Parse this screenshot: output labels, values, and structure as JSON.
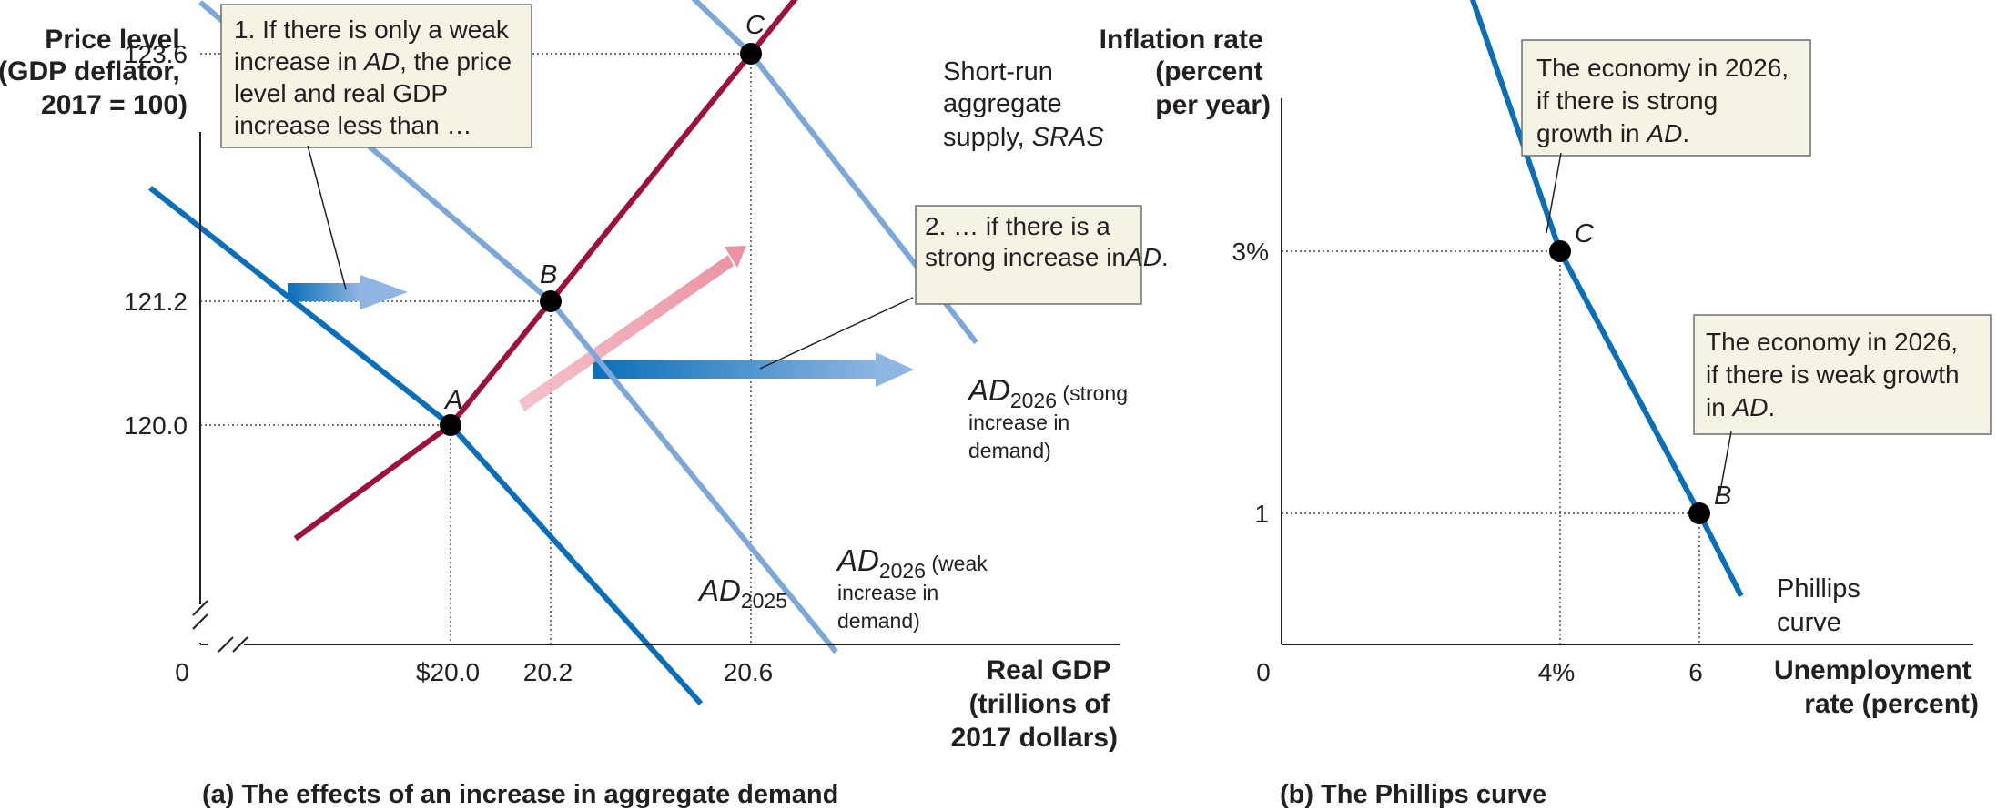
{
  "chart_data": [
    {
      "type": "line",
      "panel": "a",
      "caption_letter": "(a)",
      "caption": "The effects of an increase in aggregate demand",
      "ylabel": [
        "Price level",
        "(GDP deflator,",
        "2017 = 100)"
      ],
      "xlabel": [
        "Real GDP",
        "(trillions of",
        "2017 dollars)"
      ],
      "origin_label": "0",
      "x_ticks": [
        {
          "value": 20.0,
          "label": "$20.0"
        },
        {
          "value": 20.2,
          "label": "20.2"
        },
        {
          "value": 20.6,
          "label": "20.6"
        }
      ],
      "y_ticks": [
        {
          "value": 120.0,
          "label": "120.0"
        },
        {
          "value": 121.2,
          "label": "121.2"
        },
        {
          "value": 123.6,
          "label": "123.6"
        }
      ],
      "axis_break": true,
      "series": [
        {
          "id": "sras",
          "name": "SRAS",
          "label_lines": [
            "Short-run",
            "aggregate",
            "supply, SRAS"
          ],
          "color": "#a0103c",
          "x": [
            19.69,
            20.0,
            20.2,
            20.6,
            21.0
          ],
          "y": [
            118.9,
            120.0,
            121.2,
            123.6,
            126.0
          ]
        },
        {
          "id": "ad2025",
          "name": "AD2025",
          "label_main": "AD",
          "label_sub": "2025",
          "color": "#0a6fb8",
          "x": [
            19.4,
            20.0,
            20.5
          ],
          "y": [
            122.3,
            120.0,
            117.3
          ]
        },
        {
          "id": "ad2026weak",
          "name": "AD2026 (weak increase in demand)",
          "label_main": "AD",
          "label_sub": "2026",
          "label_rest": [
            " (weak",
            "increase in",
            "demand)"
          ],
          "color": "#7ba7d9",
          "x": [
            19.5,
            20.2,
            20.77
          ],
          "y": [
            124.1,
            121.2,
            117.8
          ]
        },
        {
          "id": "ad2026strong",
          "name": "AD2026 (strong increase in demand)",
          "label_main": "AD",
          "label_sub": "2026",
          "label_rest": [
            " (strong",
            "increase in",
            "demand)"
          ],
          "color": "#7ba7d9",
          "x": [
            20.0,
            20.6,
            21.05
          ],
          "y": [
            126.4,
            123.6,
            120.8
          ]
        }
      ],
      "points": [
        {
          "label": "A",
          "x": 20.0,
          "y": 120.0
        },
        {
          "label": "B",
          "x": 20.2,
          "y": 121.2
        },
        {
          "label": "C",
          "x": 20.6,
          "y": 123.6
        }
      ],
      "annotations": [
        {
          "id": "note1",
          "lines": [
            [
              "1. If there is only a weak",
              ""
            ],
            [
              "increase in ",
              "AD",
              ", the price"
            ],
            [
              "level and real GDP",
              ""
            ],
            [
              "increase less than …",
              ""
            ]
          ]
        },
        {
          "id": "note2",
          "lines": [
            [
              "2. … if there is a",
              ""
            ],
            [
              "strong increase in",
              ""
            ],
            [
              "",
              "AD",
              "."
            ]
          ]
        }
      ]
    },
    {
      "type": "line",
      "panel": "b",
      "caption_letter": "(b)",
      "caption": "The Phillips curve",
      "ylabel": [
        "Inflation rate",
        "(percent",
        "per year)"
      ],
      "xlabel": [
        "Unemployment",
        "rate (percent)"
      ],
      "origin_label": "0",
      "x_ticks": [
        {
          "value": 4,
          "label": "4%"
        },
        {
          "value": 6,
          "label": "6"
        }
      ],
      "y_ticks": [
        {
          "value": 1,
          "label": "1"
        },
        {
          "value": 3,
          "label": "3%"
        }
      ],
      "series": [
        {
          "id": "phillips",
          "name": "Phillips curve",
          "label_lines": [
            "Phillips",
            "curve"
          ],
          "color": "#0a6fb8",
          "x": [
            1.75,
            4.0,
            6.0,
            6.6
          ],
          "y": [
            6.44,
            3.0,
            1.0,
            0.37
          ]
        }
      ],
      "points": [
        {
          "label": "C",
          "x": 4.0,
          "y": 3.0
        },
        {
          "label": "B",
          "x": 6.0,
          "y": 1.0
        }
      ],
      "annotations": [
        {
          "id": "noteC",
          "lines": [
            [
              "The economy in 2026,",
              ""
            ],
            [
              "if there is strong",
              ""
            ],
            [
              "growth in ",
              "AD",
              "."
            ]
          ]
        },
        {
          "id": "noteB",
          "lines": [
            [
              "The economy in 2026,",
              ""
            ],
            [
              "if there is weak growth",
              ""
            ],
            [
              "in ",
              "AD",
              "."
            ]
          ]
        }
      ]
    }
  ]
}
